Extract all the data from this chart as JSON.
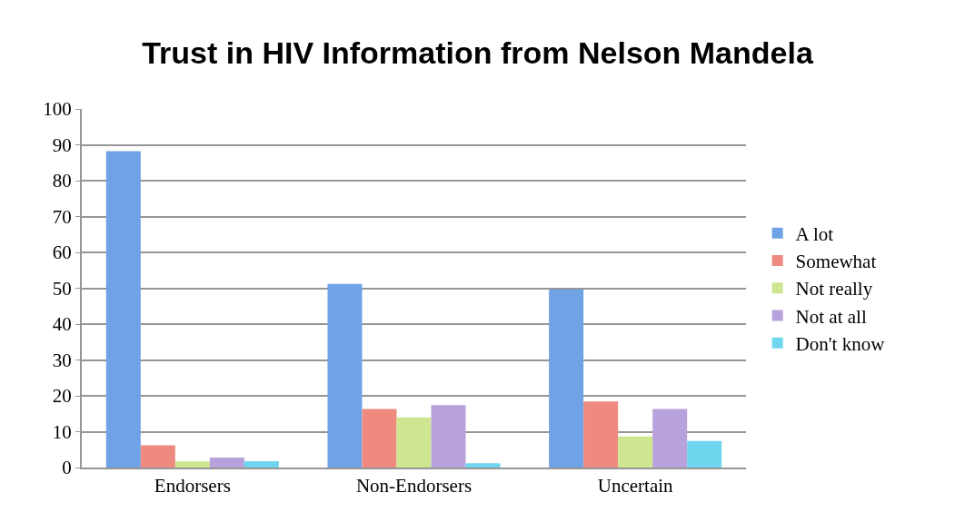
{
  "chart_data": {
    "type": "bar",
    "title": "Trust in HIV Information from Nelson Mandela",
    "categories": [
      "Endorsers",
      "Non-Endorsers",
      "Uncertain"
    ],
    "series": [
      {
        "name": "A lot",
        "color": "#6fa3e6",
        "values": [
          88.2,
          51.2,
          49.7
        ]
      },
      {
        "name": "Somewhat",
        "color": "#ee8a80",
        "values": [
          6.2,
          16.3,
          18.4
        ]
      },
      {
        "name": "Not really",
        "color": "#cfe690",
        "values": [
          1.7,
          14.0,
          8.7
        ]
      },
      {
        "name": "Not at all",
        "color": "#b8a2db",
        "values": [
          2.8,
          17.4,
          16.3
        ]
      },
      {
        "name": "Don't know",
        "color": "#70d6ef",
        "values": [
          1.8,
          1.2,
          7.4
        ]
      }
    ],
    "ylim": [
      0,
      100
    ],
    "yticks": [
      0,
      10,
      20,
      30,
      40,
      50,
      60,
      70,
      80,
      90,
      100
    ],
    "grid": "y",
    "legend": "right"
  }
}
